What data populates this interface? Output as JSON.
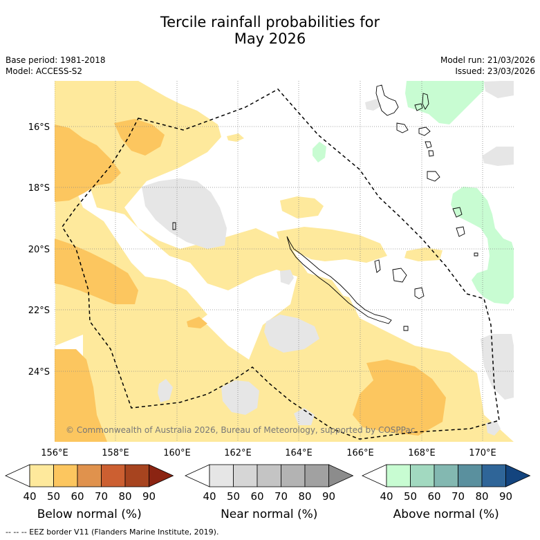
{
  "title": {
    "line1": "Tercile rainfall probabilities for",
    "line2": "May 2026"
  },
  "meta_left": {
    "base_period": "Base period: 1981-2018",
    "model": "Model: ACCESS-S2"
  },
  "meta_right": {
    "model_run": "Model run: 21/03/2026",
    "issued": "Issued: 23/03/2026"
  },
  "map": {
    "lat_labels": [
      "16°S",
      "18°S",
      "20°S",
      "22°S",
      "24°S"
    ],
    "lon_labels": [
      "156°E",
      "158°E",
      "160°E",
      "162°E",
      "164°E",
      "166°E",
      "168°E",
      "170°E"
    ],
    "copyright": "© Commonwealth of Australia 2026, Bureau of Meteorology, supported by COSPPac"
  },
  "legends": [
    {
      "name": "below-normal",
      "label": "Below normal (%)",
      "ticks": [
        "40",
        "50",
        "60",
        "70",
        "80",
        "90"
      ],
      "colors": [
        "#ffffff",
        "#fee99c",
        "#fcc65f",
        "#e0924d",
        "#cc5f31",
        "#a7441f",
        "#8b2412"
      ]
    },
    {
      "name": "near-normal",
      "label": "Near normal (%)",
      "ticks": [
        "40",
        "50",
        "60",
        "70",
        "80",
        "90"
      ],
      "colors": [
        "#ffffff",
        "#e6e6e6",
        "#d6d6d6",
        "#c4c4c4",
        "#b3b3b3",
        "#a1a1a1",
        "#8c8c8c"
      ]
    },
    {
      "name": "above-normal",
      "label": "Above normal (%)",
      "ticks": [
        "40",
        "50",
        "60",
        "70",
        "80",
        "90"
      ],
      "colors": [
        "#ffffff",
        "#c8fcd2",
        "#a2d9c0",
        "#83b8b1",
        "#5a909e",
        "#2f6598",
        "#13447e"
      ]
    }
  ],
  "footer": "--  --  -- EEZ border V11 (Flanders Marine Institute, 2019)."
}
